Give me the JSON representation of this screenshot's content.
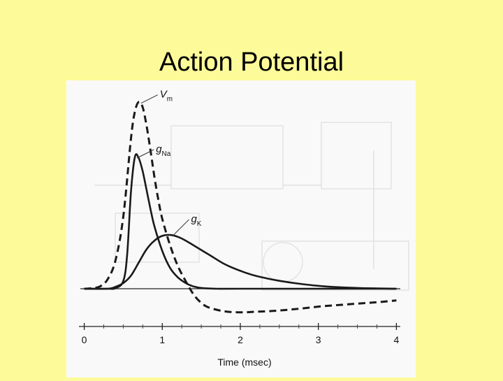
{
  "slide": {
    "title": "Action Potential"
  },
  "chart_data": {
    "type": "line",
    "xlabel": "Time (msec)",
    "ylabel": "",
    "xlim": [
      -0.05,
      4.05
    ],
    "ylim": [
      -0.18,
      1.0
    ],
    "x_ticks": [
      {
        "value": 0,
        "label": "0"
      },
      {
        "value": 1,
        "label": "1"
      },
      {
        "value": 2,
        "label": "2"
      },
      {
        "value": 3,
        "label": "3"
      },
      {
        "value": 4,
        "label": "4"
      }
    ],
    "grid": false,
    "legend": "inline curve labels",
    "series": [
      {
        "label_main": "V",
        "label_sub": "m",
        "label_italic": true,
        "style": "dashed",
        "x": [
          0.0,
          0.1,
          0.2,
          0.3,
          0.4,
          0.5,
          0.6,
          0.65,
          0.7,
          0.75,
          0.8,
          0.85,
          0.9,
          0.95,
          1.0,
          1.1,
          1.2,
          1.3,
          1.4,
          1.5,
          1.6,
          1.8,
          2.0,
          2.2,
          2.4,
          2.6,
          2.8,
          3.0,
          3.2,
          3.4,
          3.6,
          3.8,
          4.0
        ],
        "y": [
          0.0,
          0.003,
          0.012,
          0.05,
          0.15,
          0.38,
          0.8,
          0.94,
          0.99,
          0.96,
          0.86,
          0.73,
          0.59,
          0.47,
          0.37,
          0.23,
          0.12,
          0.04,
          -0.03,
          -0.075,
          -0.1,
          -0.12,
          -0.125,
          -0.122,
          -0.118,
          -0.112,
          -0.104,
          -0.095,
          -0.088,
          -0.082,
          -0.076,
          -0.07,
          -0.062
        ]
      },
      {
        "label_main": "g",
        "label_sub": "Na",
        "label_italic": true,
        "style": "solid",
        "x": [
          0.0,
          0.3,
          0.4,
          0.5,
          0.55,
          0.6,
          0.65,
          0.7,
          0.75,
          0.8,
          0.85,
          0.9,
          1.0,
          1.1,
          1.2,
          1.3,
          1.4,
          1.5,
          1.7,
          2.0,
          4.0
        ],
        "y": [
          0.0,
          0.0,
          0.003,
          0.04,
          0.18,
          0.52,
          0.7,
          0.69,
          0.62,
          0.52,
          0.42,
          0.33,
          0.2,
          0.11,
          0.06,
          0.03,
          0.012,
          0.004,
          0.0,
          0.0,
          0.0
        ]
      },
      {
        "label_main": "g",
        "label_sub": "K",
        "label_italic": true,
        "style": "solid",
        "x": [
          0.0,
          0.3,
          0.4,
          0.5,
          0.6,
          0.7,
          0.8,
          0.9,
          1.0,
          1.1,
          1.2,
          1.3,
          1.4,
          1.6,
          1.8,
          2.0,
          2.2,
          2.5,
          2.8,
          3.1,
          3.5,
          4.0
        ],
        "y": [
          0.0,
          0.0,
          0.01,
          0.03,
          0.07,
          0.14,
          0.21,
          0.255,
          0.28,
          0.285,
          0.275,
          0.255,
          0.23,
          0.18,
          0.13,
          0.095,
          0.068,
          0.042,
          0.024,
          0.012,
          0.004,
          0.0
        ]
      }
    ]
  }
}
